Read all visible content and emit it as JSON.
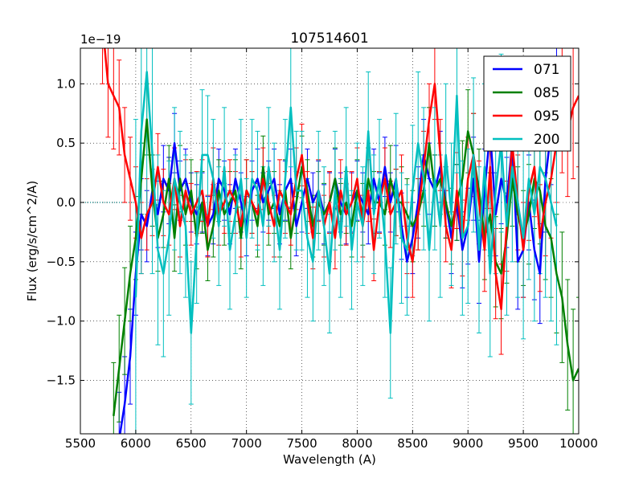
{
  "chart_data": {
    "type": "line",
    "title": "107514601",
    "xlabel": "Wavelength (A)",
    "ylabel": "Flux (erg/s/cm^2/A)",
    "y_offset_label": "1e−19",
    "xlim": [
      5500,
      10000
    ],
    "ylim": [
      -1.95,
      1.3
    ],
    "x_ticks": [
      5500,
      6000,
      6500,
      7000,
      7500,
      8000,
      8500,
      9000,
      9500,
      10000
    ],
    "x_tick_labels": [
      "5500",
      "6000",
      "6500",
      "7000",
      "7500",
      "8000",
      "8500",
      "9000",
      "9500",
      "10000"
    ],
    "y_ticks": [
      -1.5,
      -1.0,
      -0.5,
      0.0,
      0.5,
      1.0
    ],
    "y_tick_labels": [
      "−1.5",
      "−1.0",
      "−0.5",
      "0.0",
      "0.5",
      "1.0"
    ],
    "grid": true,
    "legend_position": "top-right",
    "zero_reference_line": {
      "x_from": 5500,
      "x_to": 6000,
      "y": 0.0
    },
    "series": [
      {
        "name": "071",
        "color": "#0000ff",
        "x": [
          5850,
          5900,
          5950,
          6000,
          6050,
          6100,
          6150,
          6200,
          6250,
          6300,
          6350,
          6400,
          6450,
          6500,
          6550,
          6600,
          6650,
          6700,
          6750,
          6800,
          6850,
          6900,
          6950,
          7000,
          7050,
          7100,
          7150,
          7200,
          7250,
          7300,
          7350,
          7400,
          7450,
          7500,
          7550,
          7600,
          7650,
          7700,
          7750,
          7800,
          7850,
          7900,
          7950,
          8000,
          8050,
          8100,
          8150,
          8200,
          8250,
          8300,
          8350,
          8400,
          8450,
          8500,
          8550,
          8600,
          8650,
          8700,
          8750,
          8800,
          8850,
          8900,
          8950,
          9000,
          9050,
          9100,
          9150,
          9200,
          9250,
          9300,
          9350,
          9400,
          9450,
          9500,
          9550,
          9600,
          9650,
          9700,
          9750,
          9800
        ],
        "y": [
          -2.0,
          -1.7,
          -1.3,
          -0.6,
          -0.1,
          -0.2,
          0.1,
          -0.1,
          0.2,
          0.1,
          0.5,
          0.1,
          0.2,
          0.0,
          -0.1,
          0.0,
          -0.2,
          -0.1,
          0.2,
          0.1,
          -0.1,
          0.2,
          0.0,
          -0.2,
          0.1,
          0.2,
          0.0,
          0.1,
          0.2,
          -0.1,
          0.1,
          0.2,
          -0.2,
          0.0,
          0.2,
          0.0,
          0.1,
          -0.1,
          0.0,
          0.2,
          0.0,
          -0.1,
          0.0,
          0.1,
          0.0,
          -0.1,
          0.2,
          0.0,
          0.3,
          0.0,
          0.2,
          -0.2,
          -0.5,
          -0.3,
          0.0,
          0.4,
          0.2,
          0.1,
          0.3,
          0.0,
          -0.3,
          0.0,
          -0.4,
          -0.2,
          0.2,
          -0.5,
          0.1,
          0.6,
          -0.1,
          0.2,
          0.0,
          0.5,
          -0.5,
          -0.4,
          0.0,
          -0.4,
          -0.6,
          0.2,
          0.6,
          1.2
        ],
        "yerr": [
          0.4,
          0.4,
          0.4,
          0.35,
          0.3,
          0.3,
          0.3,
          0.28,
          0.28,
          0.28,
          0.25,
          0.25,
          0.25,
          0.25,
          0.25,
          0.25,
          0.25,
          0.25,
          0.25,
          0.25,
          0.25,
          0.25,
          0.25,
          0.25,
          0.25,
          0.25,
          0.25,
          0.25,
          0.25,
          0.25,
          0.25,
          0.25,
          0.25,
          0.25,
          0.25,
          0.25,
          0.25,
          0.25,
          0.25,
          0.25,
          0.25,
          0.25,
          0.25,
          0.25,
          0.25,
          0.25,
          0.25,
          0.25,
          0.25,
          0.25,
          0.28,
          0.28,
          0.3,
          0.3,
          0.3,
          0.3,
          0.3,
          0.3,
          0.3,
          0.3,
          0.3,
          0.32,
          0.32,
          0.32,
          0.35,
          0.35,
          0.35,
          0.35,
          0.35,
          0.38,
          0.38,
          0.38,
          0.4,
          0.4,
          0.4,
          0.42,
          0.42,
          0.45,
          0.45,
          0.5
        ]
      },
      {
        "name": "085",
        "color": "#008000",
        "x": [
          5800,
          5850,
          5900,
          5950,
          6000,
          6050,
          6100,
          6150,
          6200,
          6250,
          6300,
          6350,
          6400,
          6450,
          6500,
          6550,
          6600,
          6650,
          6700,
          6750,
          6800,
          6850,
          6900,
          6950,
          7000,
          7050,
          7100,
          7150,
          7200,
          7250,
          7300,
          7350,
          7400,
          7450,
          7500,
          7550,
          7600,
          7650,
          7700,
          7750,
          7800,
          7850,
          7900,
          7950,
          8000,
          8050,
          8100,
          8150,
          8200,
          8250,
          8300,
          8350,
          8400,
          8450,
          8500,
          8550,
          8600,
          8650,
          8700,
          8750,
          8800,
          8850,
          8900,
          8950,
          9000,
          9050,
          9100,
          9150,
          9200,
          9250,
          9300,
          9350,
          9400,
          9450,
          9500,
          9550,
          9600,
          9650,
          9700,
          9750,
          9800,
          9850,
          9900,
          9950,
          10000
        ],
        "y": [
          -1.8,
          -1.4,
          -1.0,
          -0.6,
          -0.3,
          0.2,
          0.7,
          0.1,
          -0.3,
          -0.1,
          0.2,
          -0.3,
          0.2,
          -0.1,
          0.1,
          -0.3,
          0.0,
          -0.4,
          -0.2,
          0.1,
          -0.1,
          0.0,
          0.1,
          -0.3,
          0.1,
          0.0,
          -0.2,
          0.3,
          -0.1,
          0.0,
          -0.2,
          0.1,
          -0.3,
          0.0,
          0.3,
          0.1,
          -0.2,
          0.0,
          -0.1,
          0.0,
          0.2,
          -0.1,
          0.0,
          -0.2,
          0.1,
          -0.1,
          0.2,
          0.0,
          0.0,
          -0.1,
          0.2,
          0.0,
          0.0,
          -0.1,
          -0.2,
          -0.1,
          0.1,
          0.5,
          0.1,
          0.2,
          0.0,
          -0.2,
          0.0,
          0.2,
          0.6,
          0.4,
          0.1,
          -0.3,
          -0.1,
          -0.5,
          -0.6,
          -0.3,
          0.2,
          -0.1,
          -0.3,
          -0.1,
          0.2,
          0.1,
          -0.2,
          -0.3,
          -0.6,
          -0.8,
          -1.2,
          -1.5,
          -1.4
        ],
        "yerr": [
          0.45,
          0.45,
          0.45,
          0.4,
          0.35,
          0.3,
          0.3,
          0.3,
          0.28,
          0.28,
          0.28,
          0.28,
          0.28,
          0.26,
          0.26,
          0.26,
          0.26,
          0.26,
          0.26,
          0.26,
          0.26,
          0.26,
          0.26,
          0.26,
          0.26,
          0.26,
          0.26,
          0.26,
          0.26,
          0.26,
          0.26,
          0.26,
          0.26,
          0.26,
          0.26,
          0.26,
          0.26,
          0.26,
          0.26,
          0.26,
          0.26,
          0.26,
          0.26,
          0.26,
          0.26,
          0.26,
          0.26,
          0.26,
          0.26,
          0.26,
          0.28,
          0.28,
          0.3,
          0.3,
          0.3,
          0.3,
          0.3,
          0.3,
          0.3,
          0.3,
          0.3,
          0.32,
          0.32,
          0.32,
          0.35,
          0.35,
          0.35,
          0.35,
          0.35,
          0.38,
          0.38,
          0.38,
          0.4,
          0.4,
          0.4,
          0.42,
          0.42,
          0.45,
          0.45,
          0.5,
          0.5,
          0.55,
          0.55,
          0.6,
          0.6
        ]
      },
      {
        "name": "095",
        "color": "#ff0000",
        "x": [
          5700,
          5750,
          5800,
          5850,
          5900,
          5950,
          6000,
          6050,
          6100,
          6150,
          6200,
          6250,
          6300,
          6350,
          6400,
          6450,
          6500,
          6550,
          6600,
          6650,
          6700,
          6750,
          6800,
          6850,
          6900,
          6950,
          7000,
          7050,
          7100,
          7150,
          7200,
          7250,
          7300,
          7350,
          7400,
          7450,
          7500,
          7550,
          7600,
          7650,
          7700,
          7750,
          7800,
          7850,
          7900,
          7950,
          8000,
          8050,
          8100,
          8150,
          8200,
          8250,
          8300,
          8350,
          8400,
          8450,
          8500,
          8550,
          8600,
          8650,
          8700,
          8750,
          8800,
          8850,
          8900,
          8950,
          9000,
          9050,
          9100,
          9150,
          9200,
          9250,
          9300,
          9350,
          9400,
          9450,
          9500,
          9550,
          9600,
          9650,
          9700,
          9750,
          9800,
          9850,
          9900,
          9950,
          10000
        ],
        "y": [
          1.5,
          1.0,
          0.9,
          0.8,
          0.4,
          0.2,
          0.0,
          -0.3,
          -0.1,
          0.0,
          0.3,
          0.0,
          -0.1,
          0.2,
          -0.2,
          0.1,
          -0.1,
          0.0,
          0.1,
          -0.2,
          0.2,
          -0.1,
          0.0,
          0.1,
          0.0,
          -0.2,
          0.1,
          0.0,
          -0.1,
          0.2,
          0.0,
          -0.2,
          0.1,
          0.0,
          -0.1,
          0.2,
          0.4,
          0.0,
          -0.3,
          0.1,
          -0.2,
          0.0,
          -0.3,
          0.1,
          -0.1,
          0.0,
          0.2,
          -0.2,
          0.1,
          -0.4,
          0.0,
          0.2,
          -0.1,
          0.0,
          0.1,
          -0.3,
          -0.5,
          -0.1,
          0.3,
          0.7,
          1.0,
          0.4,
          -0.2,
          -0.4,
          0.1,
          -0.3,
          0.2,
          0.4,
          0.0,
          -0.4,
          0.3,
          -0.6,
          -0.9,
          -0.2,
          0.5,
          0.0,
          -0.4,
          0.1,
          0.3,
          -0.3,
          0.0,
          0.2,
          0.5,
          0.8,
          0.6,
          0.8,
          0.9
        ],
        "yerr": [
          0.5,
          0.45,
          0.45,
          0.4,
          0.4,
          0.35,
          0.3,
          0.3,
          0.3,
          0.28,
          0.28,
          0.28,
          0.26,
          0.26,
          0.26,
          0.26,
          0.26,
          0.26,
          0.26,
          0.26,
          0.26,
          0.26,
          0.26,
          0.26,
          0.26,
          0.26,
          0.26,
          0.26,
          0.26,
          0.26,
          0.26,
          0.26,
          0.26,
          0.26,
          0.26,
          0.26,
          0.26,
          0.26,
          0.26,
          0.26,
          0.26,
          0.26,
          0.26,
          0.26,
          0.26,
          0.26,
          0.26,
          0.26,
          0.26,
          0.26,
          0.26,
          0.26,
          0.28,
          0.28,
          0.3,
          0.3,
          0.3,
          0.3,
          0.3,
          0.3,
          0.3,
          0.3,
          0.3,
          0.32,
          0.32,
          0.32,
          0.35,
          0.35,
          0.35,
          0.35,
          0.35,
          0.38,
          0.38,
          0.38,
          0.4,
          0.4,
          0.4,
          0.42,
          0.42,
          0.45,
          0.45,
          0.5,
          0.5,
          0.55,
          0.55,
          0.6,
          0.6
        ]
      },
      {
        "name": "200",
        "color": "#00bfbf",
        "x": [
          6000,
          6050,
          6100,
          6150,
          6200,
          6250,
          6300,
          6350,
          6400,
          6450,
          6500,
          6550,
          6600,
          6650,
          6700,
          6750,
          6800,
          6850,
          6900,
          6950,
          7000,
          7050,
          7100,
          7150,
          7200,
          7250,
          7300,
          7350,
          7400,
          7450,
          7500,
          7550,
          7600,
          7650,
          7700,
          7750,
          7800,
          7850,
          7900,
          7950,
          8000,
          8050,
          8100,
          8150,
          8200,
          8250,
          8300,
          8350,
          8400,
          8450,
          8500,
          8550,
          8600,
          8650,
          8700,
          8750,
          8800,
          8850,
          8900,
          8950,
          9000,
          9050,
          9100,
          9150,
          9200,
          9250,
          9300,
          9350,
          9400,
          9450,
          9500,
          9550,
          9600,
          9650,
          9700,
          9750,
          9800
        ],
        "y": [
          -0.8,
          0.6,
          1.1,
          0.4,
          -0.4,
          -0.6,
          -0.3,
          0.2,
          0.0,
          -0.2,
          -1.1,
          -0.3,
          0.4,
          0.4,
          0.2,
          -0.2,
          0.3,
          -0.4,
          -0.1,
          0.2,
          -0.3,
          0.2,
          0.1,
          -0.2,
          0.3,
          0.0,
          -0.4,
          0.2,
          0.8,
          0.1,
          0.1,
          -0.3,
          -0.5,
          0.1,
          -0.2,
          -0.6,
          0.1,
          -0.3,
          0.3,
          -0.4,
          0.0,
          -0.2,
          0.6,
          -0.1,
          0.2,
          -0.3,
          -1.1,
          0.2,
          -0.3,
          -0.4,
          0.1,
          0.5,
          0.2,
          -0.4,
          0.2,
          -0.2,
          0.4,
          -0.1,
          0.9,
          -0.3,
          -0.2,
          0.4,
          -0.4,
          0.3,
          -0.6,
          0.1,
          0.5,
          -0.2,
          0.3,
          0.0,
          -0.3,
          0.2,
          -0.1,
          0.3,
          0.2,
          0.0,
          -0.2
        ],
        "yerr": [
          1.5,
          1.2,
          1.2,
          1.0,
          0.8,
          0.7,
          0.65,
          0.6,
          0.6,
          0.6,
          0.6,
          0.55,
          0.55,
          0.5,
          0.5,
          0.5,
          0.5,
          0.5,
          0.5,
          0.5,
          0.5,
          0.5,
          0.5,
          0.5,
          0.5,
          0.5,
          0.5,
          0.5,
          0.5,
          0.5,
          0.5,
          0.5,
          0.5,
          0.5,
          0.5,
          0.5,
          0.5,
          0.5,
          0.5,
          0.5,
          0.5,
          0.5,
          0.5,
          0.5,
          0.5,
          0.5,
          0.55,
          0.55,
          0.55,
          0.55,
          0.55,
          0.6,
          0.6,
          0.6,
          0.6,
          0.6,
          0.6,
          0.6,
          0.65,
          0.65,
          0.65,
          0.65,
          0.7,
          0.7,
          0.7,
          0.7,
          0.75,
          0.75,
          0.8,
          0.8,
          0.85,
          0.85,
          0.9,
          0.9,
          1.0,
          1.0,
          1.0
        ]
      }
    ]
  }
}
